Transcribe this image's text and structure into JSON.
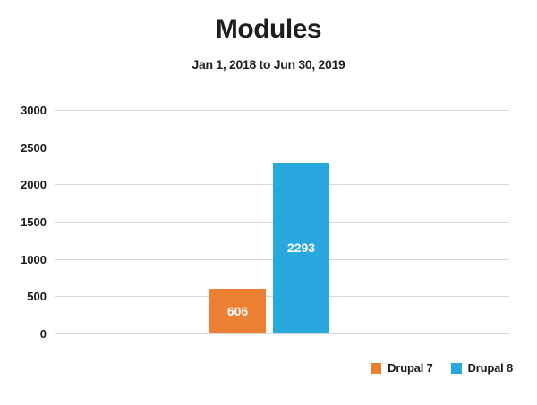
{
  "chart_data": {
    "type": "bar",
    "title": "Modules",
    "subtitle": "Jan 1, 2018 to Jun 30, 2019",
    "series": [
      {
        "name": "Drupal 7",
        "value": 606,
        "color": "#EB8032"
      },
      {
        "name": "Drupal 8",
        "value": 2293,
        "color": "#29A8E0"
      }
    ],
    "ylim": [
      0,
      3000
    ],
    "yticks": [
      0,
      500,
      1000,
      1500,
      2000,
      2500,
      3000
    ],
    "grid": true,
    "legend_position": "bottom-right",
    "value_label_color": "#ffffff",
    "gridline_color": "#d9d9d9"
  }
}
